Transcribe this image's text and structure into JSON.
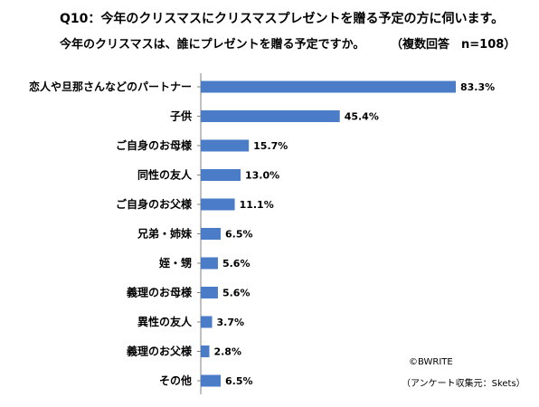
{
  "header": {
    "question": "Q10：今年のクリスマスにクリスマスプレゼントを贈る予定の方に伺います。",
    "subquestion": "今年のクリスマスは、誰にプレゼントを贈る予定ですか。",
    "note": "（複数回答　n=108）"
  },
  "footer": {
    "copyright": "©BWRITE",
    "source": "（アンケート収集元：Skets）"
  },
  "colors": {
    "bar": "#4a7cc7",
    "axis": "#808080"
  },
  "chart_data": {
    "type": "bar",
    "orientation": "horizontal",
    "categories": [
      "恋人や旦那さんなどのパートナー",
      "子供",
      "ご自身のお母様",
      "同性の友人",
      "ご自身のお父様",
      "兄弟・姉妹",
      "姪・甥",
      "義理のお母様",
      "異性の友人",
      "義理のお父様",
      "その他"
    ],
    "values": [
      83.3,
      45.4,
      15.7,
      13.0,
      11.1,
      6.5,
      5.6,
      5.6,
      3.7,
      2.8,
      6.5
    ],
    "value_labels": [
      "83.3%",
      "45.4%",
      "15.7%",
      "13.0%",
      "11.1%",
      "6.5%",
      "5.6%",
      "5.6%",
      "3.7%",
      "2.8%",
      "6.5%"
    ],
    "xlim": [
      0,
      85
    ],
    "grid": false,
    "legend": "none"
  }
}
